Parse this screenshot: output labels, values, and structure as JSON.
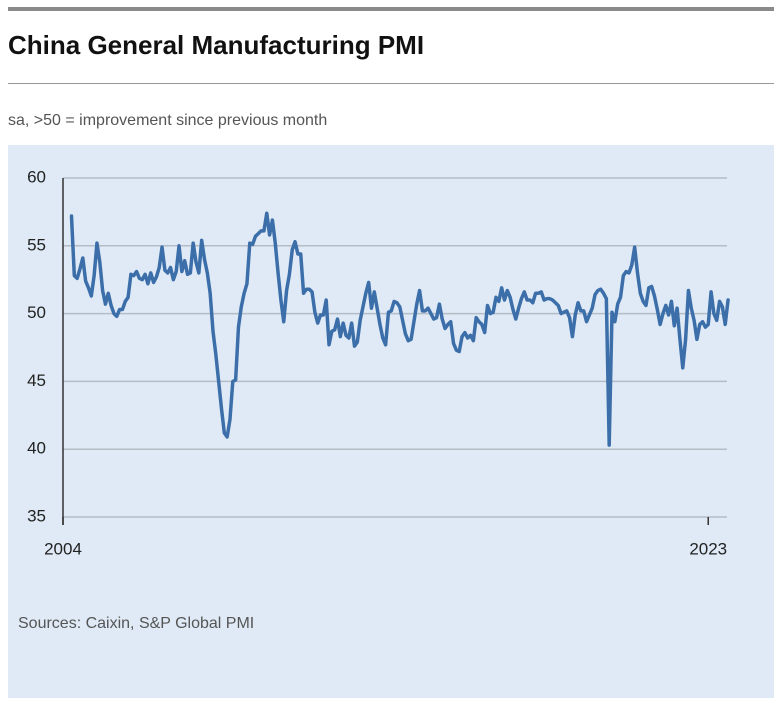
{
  "chart_data": {
    "type": "line",
    "title": "China General Manufacturing PMI",
    "subtitle": "sa, >50 = improvement since previous month",
    "source": "Sources: Caixin, S&P Global PMI",
    "color": "#3c6fa9",
    "grid": true,
    "ylim": [
      35,
      60
    ],
    "yticks": [
      35,
      40,
      45,
      50,
      55,
      60
    ],
    "categories": [
      "2004",
      null,
      null,
      null,
      null,
      null,
      null,
      null,
      null,
      null,
      null,
      null,
      null,
      null,
      null,
      null,
      null,
      null,
      null,
      null,
      null,
      null,
      null,
      null,
      null,
      null,
      null,
      null,
      null,
      null,
      null,
      null,
      null,
      null,
      null,
      null,
      null,
      null,
      null,
      null,
      null,
      null,
      null,
      null,
      null,
      null,
      null,
      null,
      null,
      null,
      null,
      null,
      null,
      null,
      null,
      null,
      null,
      null,
      null,
      null,
      null,
      null,
      null,
      null,
      null,
      null,
      null,
      null,
      null,
      null,
      null,
      null,
      null,
      null,
      null,
      null,
      null,
      null,
      null,
      null,
      null,
      null,
      null,
      null,
      null,
      null,
      null,
      null,
      null,
      null,
      null,
      null,
      null,
      null,
      null,
      null,
      null,
      null,
      null,
      null,
      null,
      null,
      null,
      null,
      null,
      null,
      null,
      null,
      null,
      null,
      null,
      null,
      null,
      null,
      null,
      null,
      null,
      null,
      null,
      null,
      null,
      null,
      null,
      null,
      null,
      null,
      null,
      null,
      null,
      null,
      null,
      null,
      null,
      null,
      null,
      null,
      null,
      null,
      null,
      null,
      null,
      null,
      null,
      null,
      null,
      null,
      null,
      null,
      null,
      null,
      null,
      null,
      null,
      null,
      null,
      null,
      null,
      null,
      null,
      null,
      null,
      null,
      null,
      null,
      null,
      null,
      null,
      null,
      null,
      null,
      null,
      null,
      null,
      null,
      null,
      null,
      null,
      null,
      null,
      null,
      null,
      null,
      null,
      null,
      null,
      null,
      null,
      null,
      null,
      null,
      null,
      null,
      null,
      null,
      null,
      null,
      null,
      null,
      null,
      null,
      null,
      null,
      null,
      null,
      null,
      null,
      null,
      null,
      null,
      null,
      null,
      null,
      null,
      null,
      null,
      null,
      null,
      null,
      null,
      null,
      null,
      null,
      null,
      null,
      null,
      null,
      null,
      null,
      "2023",
      null,
      null,
      null,
      null,
      null,
      null,
      null
    ],
    "values": [
      null,
      null,
      null,
      57.2,
      52.8,
      52.6,
      53.3,
      54.1,
      52.4,
      51.9,
      51.3,
      52.8,
      55.2,
      53.8,
      51.7,
      50.7,
      51.5,
      50.6,
      50.0,
      49.8,
      50.3,
      50.3,
      50.9,
      51.2,
      52.9,
      52.8,
      53.1,
      52.6,
      52.5,
      52.9,
      52.2,
      53.0,
      52.3,
      52.7,
      53.4,
      54.9,
      53.2,
      53.0,
      53.4,
      52.5,
      53.1,
      55.0,
      53.1,
      53.9,
      52.9,
      53.0,
      55.2,
      53.8,
      53.0,
      55.4,
      54.0,
      53.0,
      51.5,
      48.7,
      47.0,
      45.0,
      43.0,
      41.2,
      40.9,
      42.2,
      45.0,
      45.1,
      49.0,
      50.5,
      51.5,
      52.2,
      55.2,
      55.1,
      55.7,
      55.9,
      56.1,
      56.1,
      57.4,
      55.8,
      56.9,
      55.2,
      53.0,
      51.0,
      49.4,
      51.7,
      52.9,
      54.7,
      55.3,
      54.4,
      54.4,
      51.5,
      51.8,
      51.8,
      51.6,
      50.1,
      49.3,
      49.9,
      49.9,
      51.0,
      47.7,
      48.7,
      48.8,
      49.6,
      48.3,
      49.3,
      48.4,
      48.2,
      49.3,
      47.6,
      47.9,
      49.5,
      50.5,
      51.5,
      52.3,
      50.4,
      51.6,
      50.4,
      49.2,
      48.2,
      47.7,
      50.1,
      50.2,
      50.9,
      50.8,
      50.5,
      49.5,
      48.5,
      48.0,
      48.1,
      49.4,
      50.7,
      51.7,
      50.2,
      50.2,
      50.4,
      50.0,
      49.6,
      49.7,
      50.7,
      49.6,
      48.9,
      49.2,
      49.4,
      47.8,
      47.3,
      47.2,
      48.3,
      48.6,
      48.2,
      48.4,
      48.0,
      49.7,
      49.4,
      49.2,
      48.6,
      50.6,
      50.0,
      50.1,
      51.2,
      50.9,
      51.9,
      51.0,
      51.7,
      51.2,
      50.3,
      49.6,
      50.4,
      51.1,
      51.6,
      51.0,
      51.0,
      50.8,
      51.5,
      51.5,
      51.6,
      51.0,
      51.1,
      51.1,
      51.0,
      50.8,
      50.6,
      50.0,
      50.1,
      50.2,
      49.7,
      48.3,
      49.9,
      50.8,
      50.2,
      50.2,
      49.4,
      49.9,
      50.4,
      51.4,
      51.7,
      51.8,
      51.5,
      51.1,
      40.3,
      50.1,
      49.4,
      50.7,
      51.2,
      52.8,
      53.1,
      53.0,
      53.6,
      54.9,
      53.0,
      51.5,
      50.9,
      50.6,
      51.9,
      52.0,
      51.3,
      50.3,
      49.2,
      50.0,
      50.6,
      49.9,
      50.9,
      49.1,
      50.4,
      48.1,
      46.0,
      48.1,
      51.7,
      50.4,
      49.5,
      48.1,
      49.2,
      49.4,
      49.0,
      49.2,
      51.6,
      50.0,
      49.5,
      50.9,
      50.5,
      49.2,
      51.0
    ]
  }
}
